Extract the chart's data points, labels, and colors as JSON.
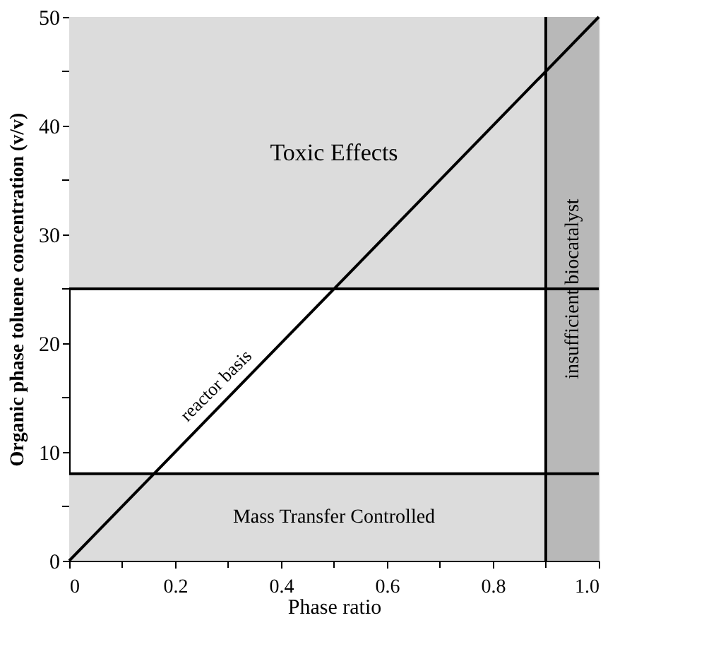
{
  "chart_data": {
    "type": "line",
    "xlabel": "Phase ratio",
    "ylabel": "Organic phase toluene concentration (v/v)",
    "x": [
      0,
      1.0
    ],
    "series": [
      {
        "color": "#000000",
        "values": [
          0,
          50
        ]
      }
    ],
    "xlim": [
      0,
      1.0
    ],
    "ylim": [
      0,
      50
    ],
    "xticks": [
      0,
      {
        "value": 0.1,
        "label": null
      },
      0.2,
      {
        "value": 0.3,
        "label": null
      },
      0.4,
      {
        "value": 0.5,
        "label": null
      },
      0.6,
      {
        "value": 0.7,
        "label": null
      },
      0.8,
      {
        "value": 0.9,
        "label": null
      },
      {
        "value": 1.0,
        "label": "1.0"
      }
    ],
    "yticks": [
      0,
      {
        "value": 5,
        "label": null
      },
      10,
      {
        "value": 15,
        "label": null
      },
      20,
      {
        "value": 25,
        "label": null
      },
      30,
      {
        "value": 35,
        "label": null
      },
      40,
      {
        "value": 45,
        "label": null
      },
      50
    ],
    "bands": [
      {
        "axis": "y",
        "from": 25,
        "to": 50,
        "label": "Toxic Effects",
        "color": "#dcdcdc"
      },
      {
        "axis": "y",
        "from": 0,
        "to": 8,
        "label": "Mass Transfer Controlled",
        "color": "#dcdcdc"
      },
      {
        "axis": "x",
        "from": 0.9,
        "to": 1.0,
        "label": "insufficient biocatalyst",
        "color": "#b8b8b8"
      }
    ],
    "ref_lines": [
      {
        "axis": "y",
        "value": 25,
        "color": "#000000"
      },
      {
        "axis": "y",
        "value": 8,
        "color": "#000000"
      },
      {
        "axis": "x",
        "value": 0.9,
        "color": "#000000"
      }
    ],
    "annotations": [
      {
        "text": "reactor basis",
        "x": 0.3,
        "y": 15
      }
    ],
    "grid": false
  }
}
